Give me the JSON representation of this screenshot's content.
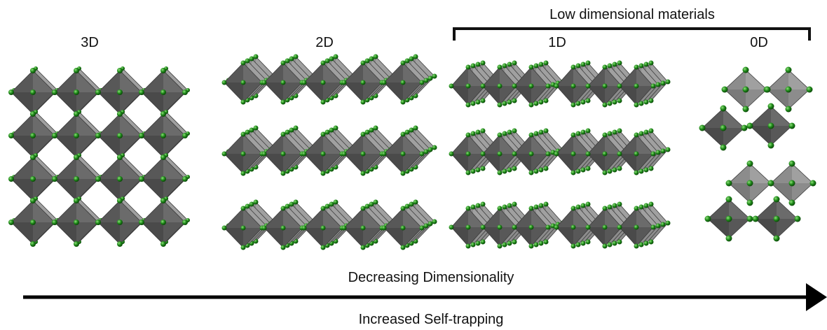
{
  "panels": [
    {
      "label": "3D"
    },
    {
      "label": "2D"
    },
    {
      "label": "1D"
    },
    {
      "label": "0D"
    }
  ],
  "bracket": {
    "label": "Low dimensional materials"
  },
  "arrow": {
    "top_label": "Decreasing Dimensionality",
    "bottom_label": "Increased Self-trapping"
  }
}
